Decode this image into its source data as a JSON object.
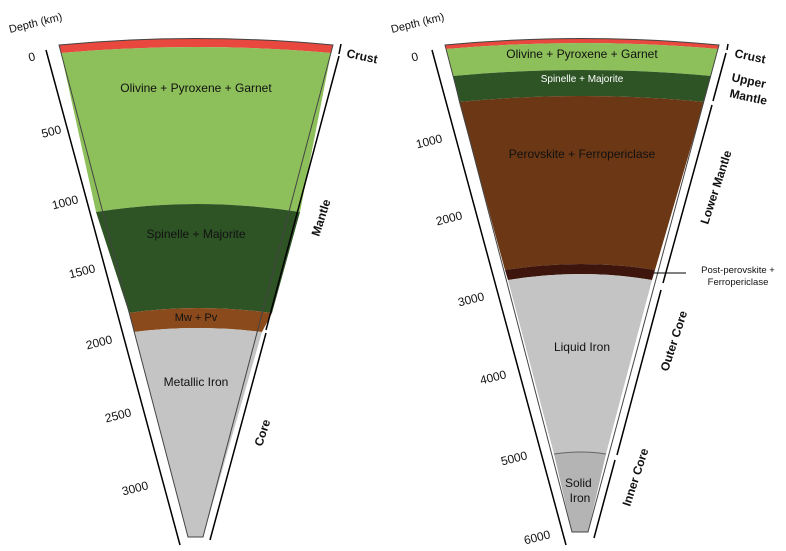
{
  "left": {
    "axis_title": "Depth (km)",
    "ticks": [
      "0",
      "500",
      "1000",
      "1500",
      "2000",
      "2500",
      "3000"
    ],
    "layers": [
      {
        "label": "",
        "color": "#e8483d"
      },
      {
        "label": "Olivine + Pyroxene + Garnet",
        "color": "#8dc05a"
      },
      {
        "label": "Spinelle + Majorite",
        "color": "#2e5426"
      },
      {
        "label": "Mw + Pv",
        "color": "#8a4a1c"
      },
      {
        "label": "Metallic Iron",
        "color": "#c4c4c4"
      }
    ],
    "zones": [
      {
        "label": "Crust"
      },
      {
        "label": "Mantle"
      },
      {
        "label": "Core"
      }
    ]
  },
  "right": {
    "axis_title": "Depth (km)",
    "ticks": [
      "0",
      "1000",
      "2000",
      "3000",
      "4000",
      "5000",
      "6000"
    ],
    "layers": [
      {
        "label": "",
        "color": "#e8483d"
      },
      {
        "label": "Olivine + Pyroxene + Garnet",
        "color": "#8dc05a"
      },
      {
        "label": "Spinelle + Majorite",
        "color": "#2e5426"
      },
      {
        "label": "Perovskite + Ferropericlase",
        "color": "#6b3714"
      },
      {
        "label": "",
        "color": "#3d150c"
      },
      {
        "label": "Liquid Iron",
        "color": "#c4c4c4"
      },
      {
        "label": "Solid Iron",
        "color": "#b4b4b4"
      }
    ],
    "zones": [
      {
        "label": "Crust"
      },
      {
        "label": "Upper Mantle"
      },
      {
        "label": "Lower Mantle"
      },
      {
        "label": "Outer Core"
      },
      {
        "label": "Inner Core"
      }
    ],
    "callout": "Post-perovskite + Ferropericlase"
  }
}
